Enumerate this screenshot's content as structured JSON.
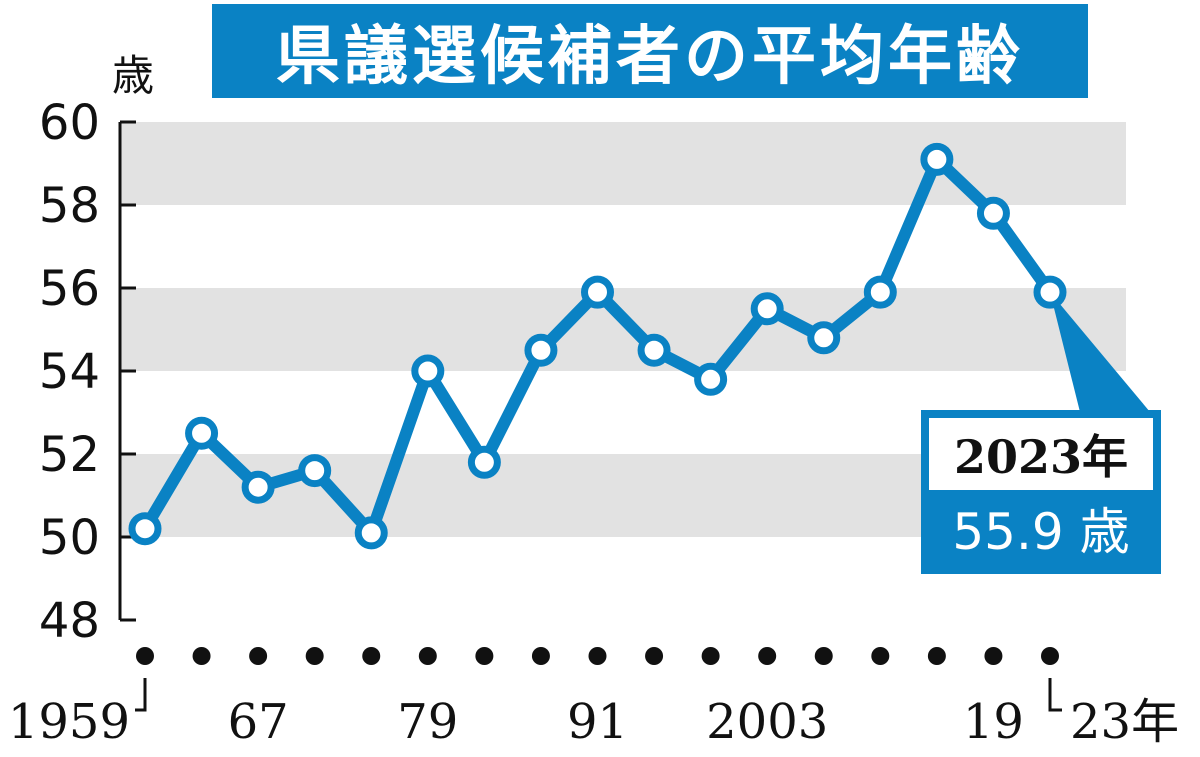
{
  "title": "県議選候補者の平均年齢",
  "y_unit": "歳",
  "callout": {
    "year_label": "2023年",
    "value_label": "55.9 歳"
  },
  "colors": {
    "accent": "#0a82c4",
    "band": "#e2e2e2",
    "axis": "#111111"
  },
  "chart_data": {
    "type": "line",
    "title": "県議選候補者の平均年齢",
    "ylabel": "歳",
    "xlabel": "",
    "ylim": [
      48,
      60
    ],
    "y_ticks": [
      48,
      50,
      52,
      54,
      56,
      58,
      60
    ],
    "x_tick_labels": [
      "1959",
      "67",
      "79",
      "91",
      "2003",
      "19",
      "23年"
    ],
    "grid": "alternating horizontal bands",
    "series": [
      {
        "x": [
          1959,
          1963,
          1967,
          1971,
          1975,
          1979,
          1983,
          1987,
          1991,
          1995,
          1999,
          2003,
          2007,
          2011,
          2015,
          2019,
          2023
        ],
        "values": [
          50.2,
          52.5,
          51.2,
          51.6,
          50.1,
          54.0,
          51.8,
          54.5,
          55.9,
          54.5,
          53.8,
          55.5,
          54.8,
          55.9,
          59.1,
          57.8,
          55.9
        ]
      }
    ],
    "annotation": {
      "text": "2023年 55.9 歳",
      "x": 2023,
      "y": 55.9
    }
  }
}
